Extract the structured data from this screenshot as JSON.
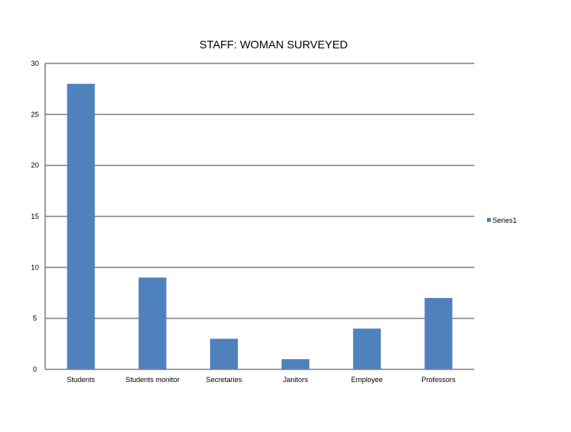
{
  "chart_data": {
    "type": "bar",
    "title": "STAFF: WOMAN SURVEYED",
    "xlabel": "",
    "ylabel": "",
    "categories": [
      "Students",
      "Students monitor",
      "Secretaries",
      "Janitors",
      "Employee",
      "Professors"
    ],
    "series": [
      {
        "name": "Series1",
        "values": [
          28,
          9,
          3,
          1,
          4,
          7
        ]
      }
    ],
    "ylim": [
      0,
      30
    ],
    "yticks": [
      0,
      5,
      10,
      15,
      20,
      25,
      30
    ],
    "grid": true,
    "legend_position": "right",
    "colors": {
      "bar": "#4f81bd",
      "gridline": "#808080",
      "axis": "#808080"
    }
  }
}
